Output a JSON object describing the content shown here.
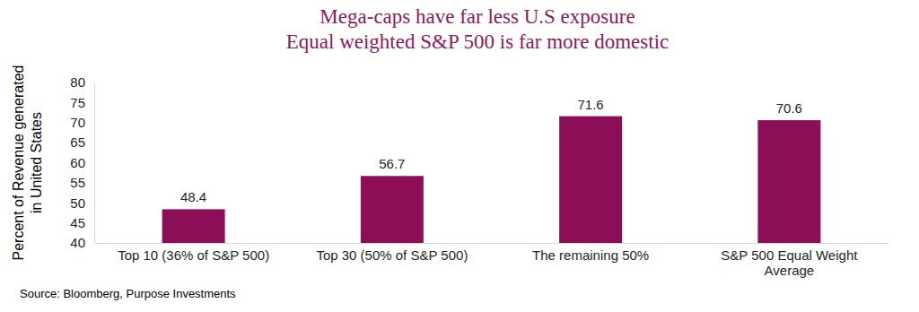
{
  "chart_data": {
    "type": "bar",
    "title": "Mega-caps have far less U.S exposure",
    "subtitle": "Equal weighted S&P 500 is far more domestic",
    "ylabel": [
      "Percent of Revenue generated",
      "in United States"
    ],
    "categories": [
      "Top 10 (36% of S&P 500)",
      "Top 30 (50% of S&P 500)",
      "The remaining 50%",
      "S&P 500 Equal Weight Average"
    ],
    "values": [
      48.4,
      56.7,
      71.6,
      70.6
    ],
    "color": "#8b0e57",
    "ylim": [
      40,
      80
    ],
    "yticks": [
      40,
      45,
      50,
      55,
      60,
      65,
      70,
      75,
      80
    ],
    "grid": false,
    "data_labels": true,
    "source": "Source: Bloomberg, Purpose Investments"
  }
}
